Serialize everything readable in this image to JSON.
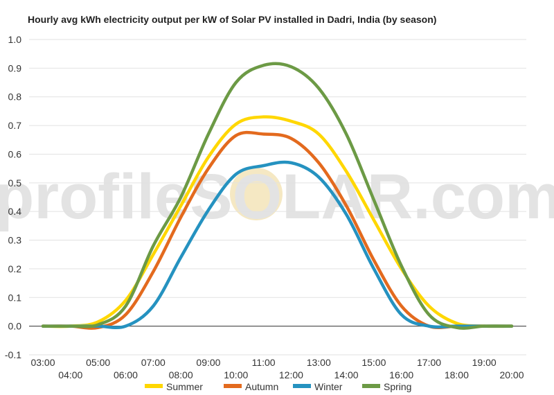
{
  "chart_data": {
    "type": "line",
    "title": "Hourly avg kWh electricity output per kW of Solar PV installed in Dadri, India (by season)",
    "xlabel": "",
    "ylabel": "",
    "ylim": [
      -0.1,
      1.0
    ],
    "y_ticks": [
      "-0.1",
      "0.0",
      "0.1",
      "0.2",
      "0.3",
      "0.4",
      "0.5",
      "0.6",
      "0.7",
      "0.8",
      "0.9",
      "1.0"
    ],
    "x_ticks": [
      "03:00",
      "04:00",
      "05:00",
      "06:00",
      "07:00",
      "08:00",
      "09:00",
      "10:00",
      "11:00",
      "12:00",
      "13:00",
      "14:00",
      "15:00",
      "16:00",
      "17:00",
      "18:00",
      "19:00",
      "20:00"
    ],
    "x_hours": [
      3,
      4,
      5,
      6,
      7,
      8,
      9,
      10,
      11,
      12,
      13,
      14,
      15,
      16,
      17,
      18,
      19,
      20
    ],
    "grid": "horizontal",
    "legend_position": "bottom",
    "series": [
      {
        "name": "Summer",
        "color": "#FFD700",
        "values": [
          0.0,
          0.0,
          0.015,
          0.09,
          0.25,
          0.42,
          0.59,
          0.705,
          0.73,
          0.715,
          0.67,
          0.54,
          0.37,
          0.2,
          0.07,
          0.01,
          0.0,
          0.0
        ]
      },
      {
        "name": "Autumn",
        "color": "#E36A1E",
        "values": [
          0.0,
          0.0,
          -0.005,
          0.04,
          0.19,
          0.38,
          0.55,
          0.665,
          0.67,
          0.655,
          0.57,
          0.42,
          0.23,
          0.07,
          0.0,
          0.0,
          0.0,
          0.0
        ]
      },
      {
        "name": "Winter",
        "color": "#2592C0",
        "values": [
          0.0,
          0.0,
          0.0,
          0.0,
          0.07,
          0.24,
          0.405,
          0.53,
          0.56,
          0.57,
          0.52,
          0.39,
          0.2,
          0.04,
          0.0,
          0.0,
          0.0,
          0.0
        ]
      },
      {
        "name": "Spring",
        "color": "#6C9A45",
        "values": [
          0.0,
          0.0,
          0.005,
          0.07,
          0.28,
          0.45,
          0.67,
          0.85,
          0.91,
          0.905,
          0.83,
          0.67,
          0.44,
          0.21,
          0.04,
          -0.005,
          0.0,
          0.0
        ]
      }
    ],
    "watermark": "profileSOLAR.com"
  }
}
